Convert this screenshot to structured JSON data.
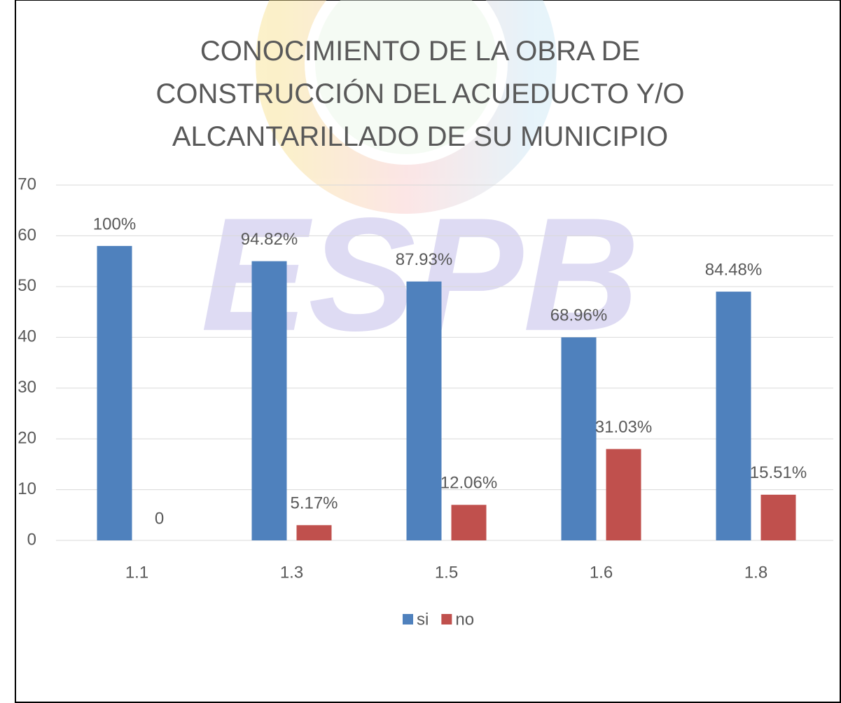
{
  "chart_data": {
    "type": "bar",
    "title": "CONOCIMIENTO DE LA OBRA DE CONSTRUCCIÓN DEL ACUEDUCTO Y/O ALCANTARILLADO DE SU MUNICIPIO",
    "watermark": "ESPB",
    "categories": [
      "1.1",
      "1.3",
      "1.5",
      "1.6",
      "1.8"
    ],
    "series": [
      {
        "name": "si",
        "color": "#4f81bd",
        "values": [
          58,
          55,
          51,
          40,
          49
        ],
        "value_labels": [
          "100%",
          "94.82%",
          "87.93%",
          "68.96%",
          "84.48%"
        ]
      },
      {
        "name": "no",
        "color": "#c0504d",
        "values": [
          0,
          3,
          7,
          18,
          9
        ],
        "value_labels": [
          "0",
          "5.17%",
          "12.06%",
          "31.03%",
          "15.51%"
        ]
      }
    ],
    "ylim": [
      0,
      70
    ],
    "yticks": [
      0,
      10,
      20,
      30,
      40,
      50,
      60,
      70
    ],
    "grid": true,
    "legend": "bottom"
  }
}
